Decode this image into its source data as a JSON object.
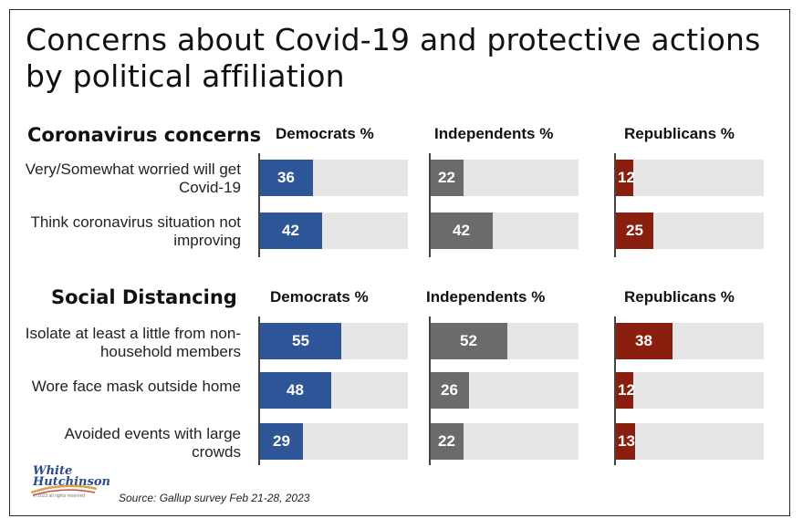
{
  "title": "Concerns about Covid-19 and protective actions by political affiliation",
  "source": "Source: Gallup survey Feb 21-28, 2023",
  "logo": {
    "line1": "White",
    "line2": "Hutchinson",
    "small": "© 2023 all rights reserved"
  },
  "colors": {
    "democrats": "#2e5597",
    "independents": "#6b6b6b",
    "republicans": "#8a1f0f",
    "track": "#e6e6e6"
  },
  "chart_data": {
    "type": "bar",
    "value_range": [
      0,
      100
    ],
    "sections": [
      {
        "title": "Coronavirus concerns",
        "column_headers": [
          "Democrats %",
          "Independents %",
          "Republicans %"
        ],
        "categories": [
          "Very/Somewhat worried will get Covid-19",
          "Think coronavirus situation not improving"
        ],
        "series": [
          {
            "name": "Democrats %",
            "values": [
              36,
              42
            ]
          },
          {
            "name": "Independents %",
            "values": [
              22,
              42
            ]
          },
          {
            "name": "Republicans %",
            "values": [
              12,
              25
            ]
          }
        ]
      },
      {
        "title": "Social Distancing",
        "column_headers": [
          "Democrats %",
          "Independents %",
          "Republicans %"
        ],
        "categories": [
          "Isolate at least a little from non-household members",
          "Wore face mask outside home",
          "Avoided events with large crowds"
        ],
        "series": [
          {
            "name": "Democrats %",
            "values": [
              55,
              48,
              29
            ]
          },
          {
            "name": "Independents %",
            "values": [
              52,
              26,
              22
            ]
          },
          {
            "name": "Republicans %",
            "values": [
              38,
              12,
              13
            ]
          }
        ]
      }
    ]
  }
}
